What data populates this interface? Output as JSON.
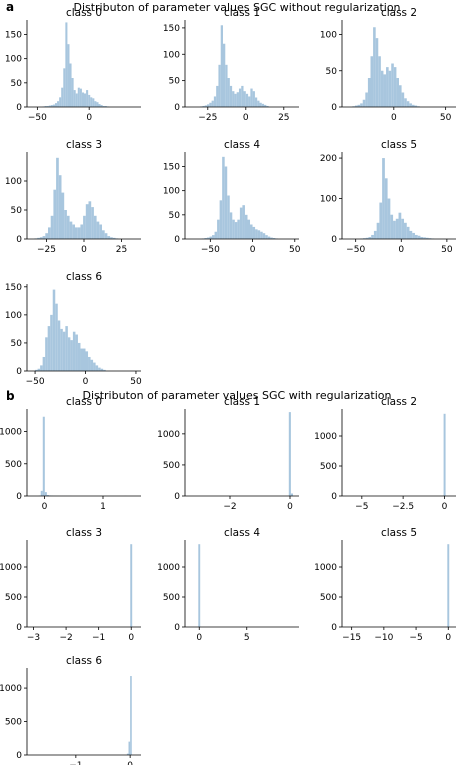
{
  "figure": {
    "panel_a": {
      "letter": "a",
      "title": "Distributon of parameter values SGC without regularization"
    },
    "panel_b": {
      "letter": "b",
      "title": "Distributon of parameter values SGC with regularization"
    },
    "bar_color": "#a8c6de"
  },
  "chart_data": [
    {
      "type": "bar",
      "panel": "a",
      "title": "class 0",
      "xlim": [
        -60,
        50
      ],
      "ylim": [
        0,
        180
      ],
      "xticks": [
        -50,
        0
      ],
      "yticks": [
        0,
        50,
        100,
        150
      ],
      "bin_start": -45,
      "bin_width": 2,
      "values": [
        1,
        2,
        2,
        3,
        4,
        5,
        8,
        12,
        20,
        40,
        80,
        175,
        130,
        90,
        60,
        35,
        28,
        40,
        38,
        30,
        28,
        35,
        25,
        20,
        18,
        12,
        10,
        6,
        4,
        2,
        2,
        1
      ]
    },
    {
      "type": "bar",
      "panel": "a",
      "title": "class 1",
      "xlim": [
        -40,
        35
      ],
      "ylim": [
        0,
        165
      ],
      "xticks": [
        -25,
        0,
        25
      ],
      "yticks": [
        0,
        50,
        100,
        150
      ],
      "bin_start": -30,
      "bin_width": 1.5,
      "values": [
        1,
        2,
        3,
        5,
        8,
        12,
        20,
        40,
        80,
        155,
        120,
        80,
        55,
        40,
        30,
        25,
        28,
        35,
        40,
        30,
        25,
        20,
        35,
        30,
        18,
        12,
        8,
        6,
        4,
        2
      ]
    },
    {
      "type": "bar",
      "panel": "a",
      "title": "class 2",
      "xlim": [
        -50,
        60
      ],
      "ylim": [
        0,
        120
      ],
      "xticks": [
        0,
        50
      ],
      "yticks": [
        0,
        50,
        100
      ],
      "bin_start": -40,
      "bin_width": 2.5,
      "values": [
        1,
        2,
        3,
        5,
        10,
        20,
        40,
        70,
        110,
        95,
        70,
        50,
        45,
        55,
        50,
        60,
        55,
        40,
        30,
        20,
        12,
        8,
        5,
        3,
        2,
        1
      ]
    },
    {
      "type": "bar",
      "panel": "a",
      "title": "class 3",
      "xlim": [
        -38,
        38
      ],
      "ylim": [
        0,
        150
      ],
      "xticks": [
        -25,
        0,
        25
      ],
      "yticks": [
        0,
        50,
        100
      ],
      "bin_start": -33,
      "bin_width": 1.8,
      "values": [
        1,
        2,
        3,
        5,
        10,
        20,
        40,
        85,
        140,
        110,
        80,
        50,
        40,
        30,
        25,
        20,
        20,
        25,
        40,
        60,
        65,
        55,
        40,
        30,
        25,
        15,
        10,
        5,
        3,
        2,
        1
      ]
    },
    {
      "type": "bar",
      "panel": "a",
      "title": "class 4",
      "xlim": [
        -80,
        55
      ],
      "ylim": [
        0,
        180
      ],
      "xticks": [
        -50,
        0,
        50
      ],
      "yticks": [
        0,
        50,
        100,
        150
      ],
      "bin_start": -60,
      "bin_width": 3,
      "values": [
        1,
        2,
        3,
        5,
        8,
        15,
        40,
        80,
        170,
        150,
        90,
        55,
        40,
        35,
        40,
        65,
        70,
        50,
        40,
        30,
        25,
        20,
        18,
        15,
        12,
        8,
        5,
        3,
        2,
        1
      ]
    },
    {
      "type": "bar",
      "panel": "a",
      "title": "class 5",
      "xlim": [
        -65,
        60
      ],
      "ylim": [
        0,
        215
      ],
      "xticks": [
        -50,
        0,
        50
      ],
      "yticks": [
        0,
        100,
        200
      ],
      "bin_start": -45,
      "bin_width": 3,
      "values": [
        1,
        2,
        3,
        5,
        10,
        20,
        40,
        90,
        200,
        150,
        100,
        60,
        45,
        50,
        65,
        50,
        40,
        30,
        20,
        15,
        10,
        8,
        5,
        4,
        3,
        2,
        1
      ]
    },
    {
      "type": "bar",
      "panel": "a",
      "title": "class 6",
      "xlim": [
        -58,
        55
      ],
      "ylim": [
        0,
        155
      ],
      "xticks": [
        -50,
        0,
        50
      ],
      "yticks": [
        0,
        50,
        100,
        150
      ],
      "bin_start": -50,
      "bin_width": 2.5,
      "values": [
        2,
        4,
        10,
        25,
        60,
        80,
        100,
        145,
        120,
        90,
        75,
        70,
        80,
        60,
        55,
        70,
        65,
        50,
        40,
        40,
        35,
        25,
        20,
        15,
        10,
        6,
        4,
        2
      ]
    },
    {
      "type": "bar",
      "panel": "b",
      "title": "class 0",
      "xlim": [
        -0.3,
        1.65
      ],
      "ylim": [
        0,
        1350
      ],
      "xticks": [
        0,
        1
      ],
      "yticks": [
        0,
        500,
        1000
      ],
      "bin_start": -0.1,
      "bin_width": 0.035,
      "values": [
        5,
        80,
        1230,
        60,
        15,
        8,
        5,
        3,
        2,
        2,
        1,
        1,
        1,
        1,
        1,
        1,
        0,
        0,
        0,
        0,
        0,
        0,
        0,
        0,
        0,
        0,
        0,
        0,
        0,
        0,
        0,
        0,
        0,
        0,
        0,
        0,
        0,
        0,
        0,
        0,
        0,
        0,
        1
      ]
    },
    {
      "type": "bar",
      "panel": "b",
      "title": "class 1",
      "xlim": [
        -3.5,
        0.3
      ],
      "ylim": [
        0,
        1400
      ],
      "xticks": [
        -2,
        0
      ],
      "yticks": [
        0,
        500,
        1000
      ],
      "bin_start": -0.04,
      "bin_width": 0.07,
      "values": [
        1350,
        40
      ]
    },
    {
      "type": "bar",
      "panel": "b",
      "title": "class 2",
      "xlim": [
        -6.2,
        0.7
      ],
      "ylim": [
        0,
        1450
      ],
      "xticks": [
        -5.0,
        -2.5,
        0.0
      ],
      "yticks": [
        0,
        500,
        1000
      ],
      "bin_start": -0.05,
      "bin_width": 0.12,
      "values": [
        1370
      ]
    },
    {
      "type": "bar",
      "panel": "b",
      "title": "class 3",
      "xlim": [
        -3.2,
        0.3
      ],
      "ylim": [
        0,
        1450
      ],
      "xticks": [
        -3,
        -2,
        -1,
        0
      ],
      "yticks": [
        0,
        500,
        1000
      ],
      "bin_start": -0.03,
      "bin_width": 0.06,
      "values": [
        1380
      ]
    },
    {
      "type": "bar",
      "panel": "b",
      "title": "class 4",
      "xlim": [
        -1.5,
        10.5
      ],
      "ylim": [
        0,
        1450
      ],
      "xticks": [
        0,
        5
      ],
      "yticks": [
        0,
        500,
        1000
      ],
      "bin_start": -0.1,
      "bin_width": 0.2,
      "values": [
        1380
      ]
    },
    {
      "type": "bar",
      "panel": "b",
      "title": "class 5",
      "xlim": [
        -16.5,
        1.2
      ],
      "ylim": [
        0,
        1450
      ],
      "xticks": [
        -15,
        -10,
        -5,
        0
      ],
      "yticks": [
        0,
        500,
        1000
      ],
      "bin_start": -0.15,
      "bin_width": 0.3,
      "values": [
        1380
      ]
    },
    {
      "type": "bar",
      "panel": "b",
      "title": "class 6",
      "xlim": [
        -1.9,
        0.2
      ],
      "ylim": [
        0,
        1300
      ],
      "xticks": [
        -1,
        0
      ],
      "yticks": [
        0,
        500,
        1000
      ],
      "bin_start": -0.06,
      "bin_width": 0.03,
      "values": [
        20,
        200,
        1180
      ]
    }
  ]
}
